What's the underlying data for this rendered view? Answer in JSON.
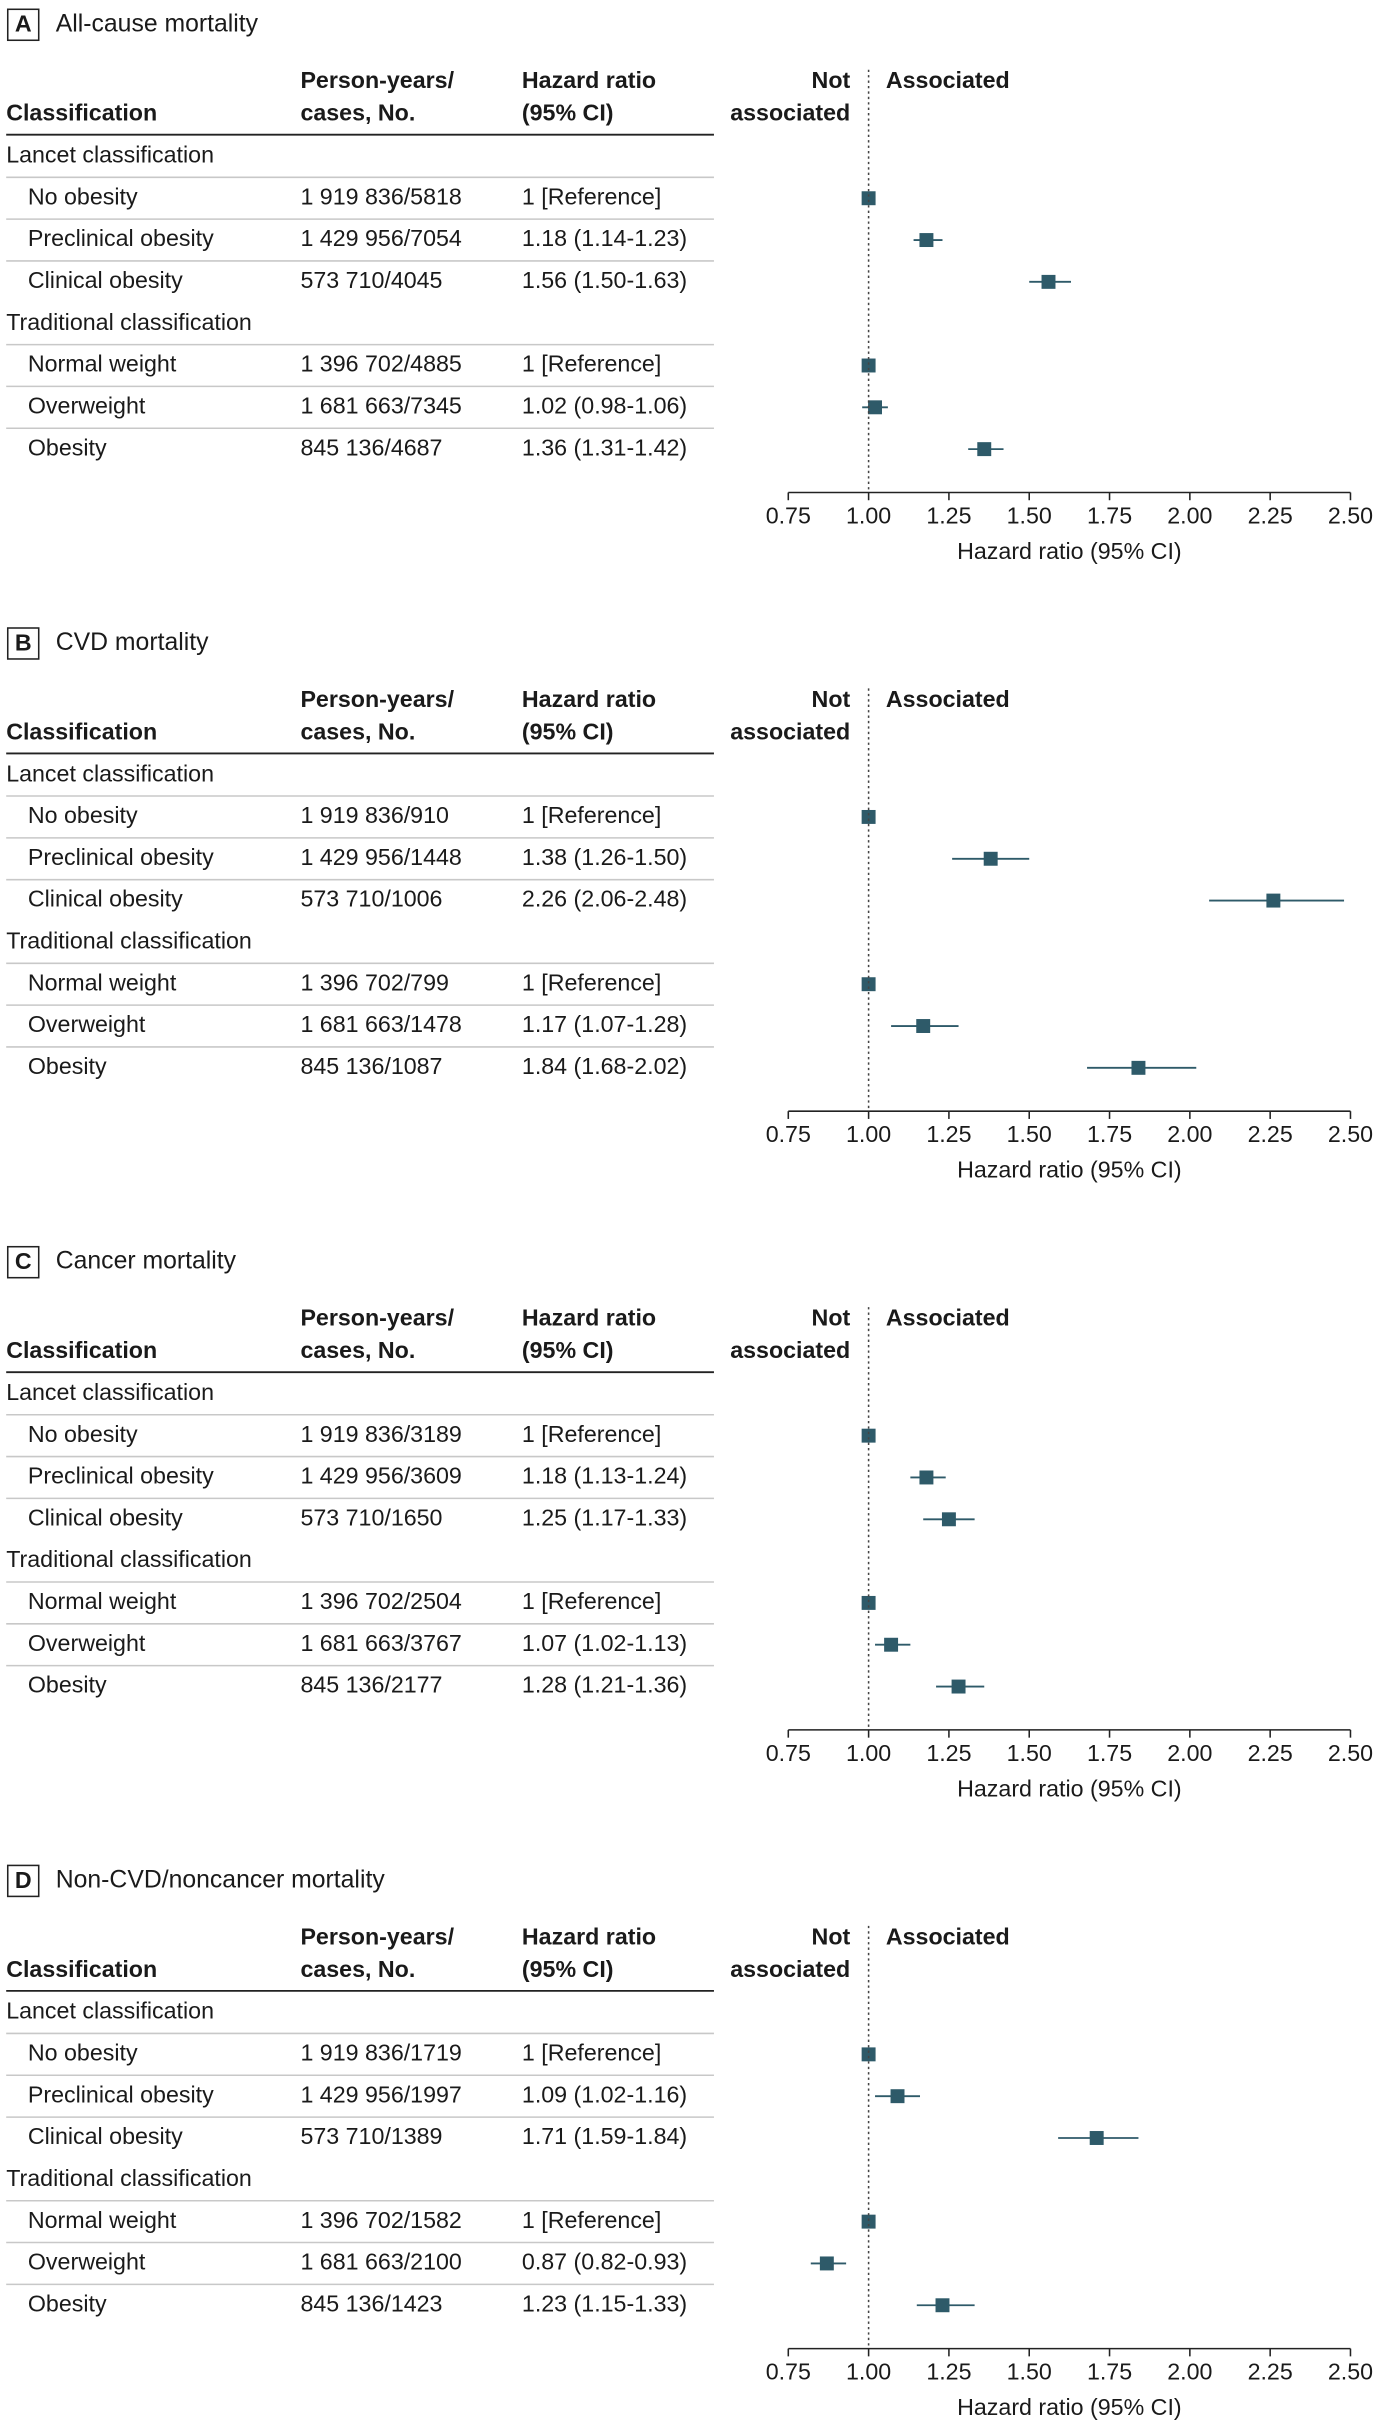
{
  "chart_data": [
    {
      "type": "forest",
      "panel": "A",
      "title": "All-cause mortality",
      "columns": [
        [
          "Classification"
        ],
        [
          "Person-years/",
          "cases, No."
        ],
        [
          "Hazard ratio",
          "(95% CI)"
        ]
      ],
      "left_label": [
        "Not",
        "associated"
      ],
      "right_label": "Associated",
      "xlabel": "Hazard ratio (95% CI)",
      "xlim": [
        0.75,
        2.5
      ],
      "ref_line": 1,
      "color": "#2e5a69",
      "xticks": [
        0.75,
        {
          "value": 1,
          "label": "1.00"
        },
        1.25,
        {
          "value": 1.5,
          "label": "1.50"
        },
        1.75,
        {
          "value": 2,
          "label": "2.00"
        },
        2.25,
        {
          "value": 2.5,
          "label": "2.50"
        }
      ],
      "series": [
        {
          "name": "Lancet classification",
          "categories": [
            "No obesity",
            "Preclinical obesity",
            "Clinical obesity"
          ],
          "cases": [
            "1 919 836/5818",
            "1 429 956/7054",
            "573 710/4045"
          ],
          "values": [
            1,
            1.18,
            1.56
          ],
          "lower": [
            null,
            1.14,
            1.5
          ],
          "upper": [
            null,
            1.23,
            1.63
          ],
          "value_labels": [
            "1 [Reference]",
            "1.18 (1.14-1.23)",
            "1.56 (1.50-1.63)"
          ]
        },
        {
          "name": "Traditional classification",
          "categories": [
            "Normal weight",
            "Overweight",
            "Obesity"
          ],
          "cases": [
            "1 396 702/4885",
            "1 681 663/7345",
            "845 136/4687"
          ],
          "values": [
            1,
            1.02,
            1.36
          ],
          "lower": [
            null,
            0.98,
            1.31
          ],
          "upper": [
            null,
            1.06,
            1.42
          ],
          "value_labels": [
            "1 [Reference]",
            "1.02 (0.98-1.06)",
            "1.36 (1.31-1.42)"
          ]
        }
      ]
    },
    {
      "type": "forest",
      "panel": "B",
      "title": "CVD mortality",
      "columns": [
        [
          "Classification"
        ],
        [
          "Person-years/",
          "cases, No."
        ],
        [
          "Hazard ratio",
          "(95% CI)"
        ]
      ],
      "left_label": [
        "Not",
        "associated"
      ],
      "right_label": "Associated",
      "xlabel": "Hazard ratio (95% CI)",
      "xlim": [
        0.75,
        2.5
      ],
      "ref_line": 1,
      "color": "#2e5a69",
      "xticks": [
        0.75,
        {
          "value": 1,
          "label": "1.00"
        },
        1.25,
        {
          "value": 1.5,
          "label": "1.50"
        },
        1.75,
        {
          "value": 2,
          "label": "2.00"
        },
        2.25,
        {
          "value": 2.5,
          "label": "2.50"
        }
      ],
      "series": [
        {
          "name": "Lancet classification",
          "categories": [
            "No obesity",
            "Preclinical obesity",
            "Clinical obesity"
          ],
          "cases": [
            "1 919 836/910",
            "1 429 956/1448",
            "573 710/1006"
          ],
          "values": [
            1,
            1.38,
            2.26
          ],
          "lower": [
            null,
            1.26,
            2.06
          ],
          "upper": [
            null,
            1.5,
            2.48
          ],
          "value_labels": [
            "1 [Reference]",
            "1.38 (1.26-1.50)",
            "2.26 (2.06-2.48)"
          ]
        },
        {
          "name": "Traditional classification",
          "categories": [
            "Normal weight",
            "Overweight",
            "Obesity"
          ],
          "cases": [
            "1 396 702/799",
            "1 681 663/1478",
            "845 136/1087"
          ],
          "values": [
            1,
            1.17,
            1.84
          ],
          "lower": [
            null,
            1.07,
            1.68
          ],
          "upper": [
            null,
            1.28,
            2.02
          ],
          "value_labels": [
            "1 [Reference]",
            "1.17 (1.07-1.28)",
            "1.84 (1.68-2.02)"
          ]
        }
      ]
    },
    {
      "type": "forest",
      "panel": "C",
      "title": "Cancer mortality",
      "columns": [
        [
          "Classification"
        ],
        [
          "Person-years/",
          "cases, No."
        ],
        [
          "Hazard ratio",
          "(95% CI)"
        ]
      ],
      "left_label": [
        "Not",
        "associated"
      ],
      "right_label": "Associated",
      "xlabel": "Hazard ratio (95% CI)",
      "xlim": [
        0.75,
        2.5
      ],
      "ref_line": 1,
      "color": "#2e5a69",
      "xticks": [
        0.75,
        {
          "value": 1,
          "label": "1.00"
        },
        1.25,
        {
          "value": 1.5,
          "label": "1.50"
        },
        1.75,
        {
          "value": 2,
          "label": "2.00"
        },
        2.25,
        {
          "value": 2.5,
          "label": "2.50"
        }
      ],
      "series": [
        {
          "name": "Lancet classification",
          "categories": [
            "No obesity",
            "Preclinical obesity",
            "Clinical obesity"
          ],
          "cases": [
            "1 919 836/3189",
            "1 429 956/3609",
            "573 710/1650"
          ],
          "values": [
            1,
            1.18,
            1.25
          ],
          "lower": [
            null,
            1.13,
            1.17
          ],
          "upper": [
            null,
            1.24,
            1.33
          ],
          "value_labels": [
            "1 [Reference]",
            "1.18 (1.13-1.24)",
            "1.25 (1.17-1.33)"
          ]
        },
        {
          "name": "Traditional classification",
          "categories": [
            "Normal weight",
            "Overweight",
            "Obesity"
          ],
          "cases": [
            "1 396 702/2504",
            "1 681 663/3767",
            "845 136/2177"
          ],
          "values": [
            1,
            1.07,
            1.28
          ],
          "lower": [
            null,
            1.02,
            1.21
          ],
          "upper": [
            null,
            1.13,
            1.36
          ],
          "value_labels": [
            "1 [Reference]",
            "1.07 (1.02-1.13)",
            "1.28 (1.21-1.36)"
          ]
        }
      ]
    },
    {
      "type": "forest",
      "panel": "D",
      "title": "Non-CVD/noncancer mortality",
      "columns": [
        [
          "Classification"
        ],
        [
          "Person-years/",
          "cases, No."
        ],
        [
          "Hazard ratio",
          "(95% CI)"
        ]
      ],
      "left_label": [
        "Not",
        "associated"
      ],
      "right_label": "Associated",
      "xlabel": "Hazard ratio (95% CI)",
      "xlim": [
        0.75,
        2.5
      ],
      "ref_line": 1,
      "color": "#2e5a69",
      "xticks": [
        0.75,
        {
          "value": 1,
          "label": "1.00"
        },
        1.25,
        {
          "value": 1.5,
          "label": "1.50"
        },
        1.75,
        {
          "value": 2,
          "label": "2.00"
        },
        2.25,
        {
          "value": 2.5,
          "label": "2.50"
        }
      ],
      "series": [
        {
          "name": "Lancet classification",
          "categories": [
            "No obesity",
            "Preclinical obesity",
            "Clinical obesity"
          ],
          "cases": [
            "1 919 836/1719",
            "1 429 956/1997",
            "573 710/1389"
          ],
          "values": [
            1,
            1.09,
            1.71
          ],
          "lower": [
            null,
            1.02,
            1.59
          ],
          "upper": [
            null,
            1.16,
            1.84
          ],
          "value_labels": [
            "1 [Reference]",
            "1.09 (1.02-1.16)",
            "1.71 (1.59-1.84)"
          ]
        },
        {
          "name": "Traditional classification",
          "categories": [
            "Normal weight",
            "Overweight",
            "Obesity"
          ],
          "cases": [
            "1 396 702/1582",
            "1 681 663/2100",
            "845 136/1423"
          ],
          "values": [
            1,
            0.87,
            1.23
          ],
          "lower": [
            null,
            0.82,
            1.15
          ],
          "upper": [
            null,
            0.93,
            1.33
          ],
          "value_labels": [
            "1 [Reference]",
            "0.87 (0.82-0.93)",
            "1.23 (1.15-1.33)"
          ]
        }
      ]
    }
  ]
}
